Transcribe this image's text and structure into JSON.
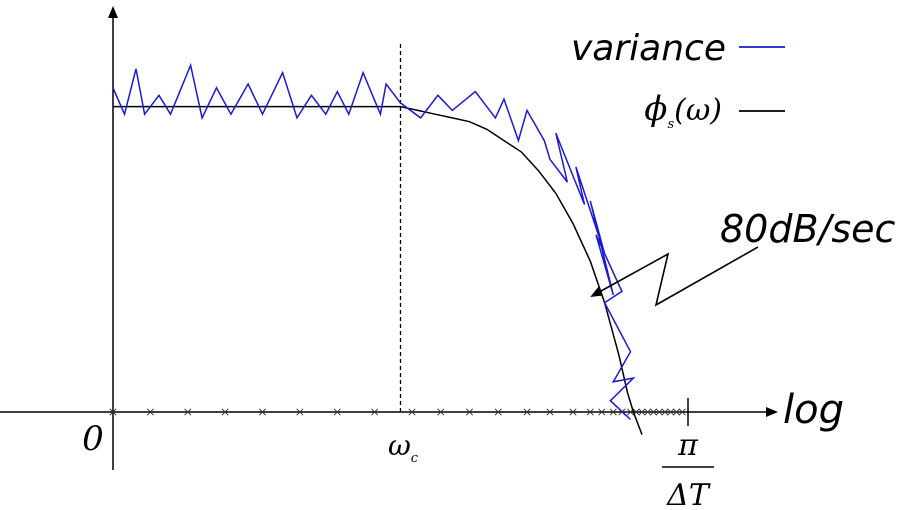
{
  "chart_data": {
    "type": "line",
    "series": [
      {
        "name": "variance",
        "color": "#1a1ad6",
        "points": [
          [
            0.0,
            0.86
          ],
          [
            0.04,
            0.79
          ],
          [
            0.08,
            0.91
          ],
          [
            0.11,
            0.79
          ],
          [
            0.16,
            0.84
          ],
          [
            0.2,
            0.79
          ],
          [
            0.27,
            0.92
          ],
          [
            0.31,
            0.78
          ],
          [
            0.36,
            0.86
          ],
          [
            0.41,
            0.79
          ],
          [
            0.47,
            0.87
          ],
          [
            0.52,
            0.79
          ],
          [
            0.59,
            0.9
          ],
          [
            0.64,
            0.78
          ],
          [
            0.69,
            0.84
          ],
          [
            0.74,
            0.79
          ],
          [
            0.78,
            0.85
          ],
          [
            0.82,
            0.79
          ],
          [
            0.87,
            0.9
          ],
          [
            0.93,
            0.79
          ],
          [
            0.95,
            0.87
          ],
          [
            1.0,
            0.82
          ],
          [
            1.07,
            0.78
          ],
          [
            1.13,
            0.84
          ],
          [
            1.18,
            0.8
          ],
          [
            1.26,
            0.85
          ],
          [
            1.33,
            0.78
          ],
          [
            1.36,
            0.83
          ],
          [
            1.41,
            0.72
          ],
          [
            1.44,
            0.8
          ],
          [
            1.5,
            0.72
          ],
          [
            1.52,
            0.67
          ],
          [
            1.58,
            0.61
          ],
          [
            1.54,
            0.74
          ],
          [
            1.64,
            0.55
          ],
          [
            1.61,
            0.65
          ],
          [
            1.71,
            0.42
          ],
          [
            1.66,
            0.56
          ],
          [
            1.74,
            0.31
          ],
          [
            1.68,
            0.47
          ],
          [
            1.77,
            0.32
          ],
          [
            1.71,
            0.29
          ],
          [
            1.8,
            0.16
          ],
          [
            1.74,
            0.08
          ],
          [
            1.81,
            0.09
          ],
          [
            1.73,
            0.03
          ],
          [
            1.8,
            -0.02
          ]
        ]
      },
      {
        "name": "ϕs(ω)",
        "color": "#000000",
        "points": [
          [
            0.0,
            0.81
          ],
          [
            0.2,
            0.81
          ],
          [
            0.4,
            0.81
          ],
          [
            0.6,
            0.81
          ],
          [
            0.8,
            0.81
          ],
          [
            0.95,
            0.81
          ],
          [
            1.0,
            0.81
          ],
          [
            1.06,
            0.8
          ],
          [
            1.12,
            0.79
          ],
          [
            1.18,
            0.78
          ],
          [
            1.24,
            0.77
          ],
          [
            1.3,
            0.75
          ],
          [
            1.36,
            0.72
          ],
          [
            1.42,
            0.69
          ],
          [
            1.48,
            0.64
          ],
          [
            1.54,
            0.58
          ],
          [
            1.6,
            0.5
          ],
          [
            1.66,
            0.4
          ],
          [
            1.71,
            0.29
          ],
          [
            1.76,
            0.15
          ],
          [
            1.79,
            0.05
          ],
          [
            1.81,
            0.0
          ],
          [
            1.84,
            -0.06
          ]
        ]
      }
    ],
    "xlabel": "log",
    "x_ticks": [
      {
        "value": 0,
        "label": "0"
      },
      {
        "value": 1,
        "label": "ω",
        "sub": "c"
      },
      {
        "value": 2,
        "label_num": "π",
        "label_den": "ΔT"
      }
    ],
    "x_sample_marks": [
      0.0,
      0.13,
      0.26,
      0.39,
      0.52,
      0.65,
      0.78,
      0.91,
      1.04,
      1.14,
      1.24,
      1.34,
      1.44,
      1.52,
      1.6,
      1.66,
      1.7,
      1.74,
      1.77,
      1.8,
      1.82,
      1.84,
      1.86,
      1.88,
      1.9,
      1.92,
      1.94,
      1.96,
      1.98
    ],
    "cutoff_x": 1,
    "annotation": "80dB/sec",
    "legend": [
      {
        "label": "variance",
        "color": "#1a1ad6"
      },
      {
        "label": "ϕ",
        "sub": "s",
        "tail": "(ω)",
        "color": "#000000"
      }
    ],
    "legend_position": "top-right",
    "grid": false
  }
}
